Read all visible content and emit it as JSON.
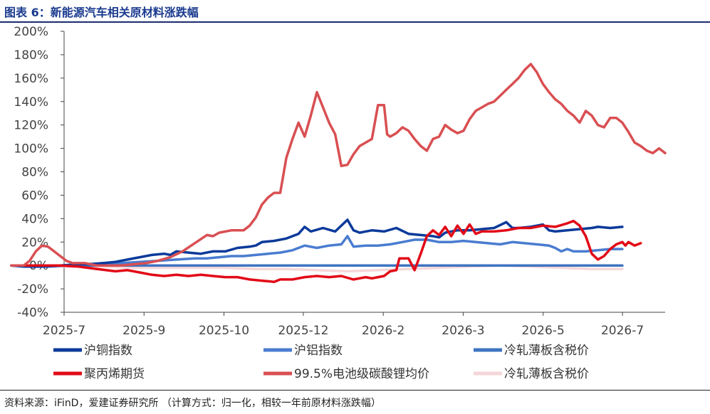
{
  "header": {
    "title": "图表 6：新能源汽车相关原材料涨跌幅"
  },
  "footer": {
    "source": "资料来源：iFinD，爱建证券研究所 （计算方式：归一化，相较一年前原材料涨跌幅）"
  },
  "chart_data": {
    "type": "line",
    "title": "图表 6：新能源汽车相关原材料涨跌幅",
    "xlabel": "",
    "ylabel": "",
    "ylim": [
      -0.4,
      2.0
    ],
    "yticks": [
      -0.4,
      -0.2,
      0,
      0.2,
      0.4,
      0.6,
      0.8,
      1.0,
      1.2,
      1.4,
      1.6,
      1.8,
      2.0
    ],
    "ytick_labels": [
      "-40%",
      "-20%",
      "0%",
      "20%",
      "40%",
      "60%",
      "80%",
      "100%",
      "120%",
      "140%",
      "160%",
      "180%",
      "200%"
    ],
    "xlim": [
      0,
      100
    ],
    "xtick_positions": [
      0,
      13.3,
      26.6,
      39.8,
      53.1,
      66.4,
      79.7,
      92.9
    ],
    "xtick_labels": [
      "2025-7",
      "2025-9",
      "2025-10",
      "2025-12",
      "2026-2",
      "2026-3",
      "2026-5",
      "2026-7"
    ],
    "grid": false,
    "legend_position": "bottom",
    "series": [
      {
        "name": "沪铜指数",
        "color": "#0b3a9a",
        "points": [
          [
            0,
            0
          ],
          [
            2,
            -0.01
          ],
          [
            5,
            -0.01
          ],
          [
            8,
            0
          ],
          [
            11,
            0.01
          ],
          [
            13,
            0.01
          ],
          [
            15,
            0.02
          ],
          [
            17,
            0.03
          ],
          [
            19,
            0.05
          ],
          [
            21,
            0.07
          ],
          [
            23,
            0.09
          ],
          [
            25,
            0.1
          ],
          [
            26,
            0.09
          ],
          [
            27,
            0.12
          ],
          [
            29,
            0.11
          ],
          [
            31,
            0.1
          ],
          [
            33,
            0.12
          ],
          [
            35,
            0.12
          ],
          [
            37,
            0.15
          ],
          [
            39,
            0.16
          ],
          [
            40,
            0.17
          ],
          [
            41,
            0.2
          ],
          [
            43,
            0.21
          ],
          [
            45,
            0.23
          ],
          [
            47,
            0.27
          ],
          [
            48,
            0.33
          ],
          [
            49,
            0.29
          ],
          [
            51,
            0.32
          ],
          [
            53,
            0.29
          ],
          [
            55,
            0.39
          ],
          [
            56,
            0.3
          ],
          [
            57,
            0.28
          ],
          [
            59,
            0.3
          ],
          [
            61,
            0.29
          ],
          [
            63,
            0.32
          ],
          [
            65,
            0.27
          ],
          [
            67,
            0.26
          ],
          [
            69,
            0.25
          ],
          [
            70,
            0.24
          ],
          [
            71,
            0.28
          ],
          [
            73,
            0.3
          ],
          [
            75,
            0.3
          ],
          [
            77,
            0.31
          ],
          [
            79,
            0.32
          ],
          [
            81,
            0.37
          ],
          [
            82,
            0.32
          ],
          [
            83,
            0.32
          ],
          [
            85,
            0.33
          ],
          [
            87,
            0.35
          ],
          [
            88,
            0.3
          ],
          [
            89,
            0.29
          ],
          [
            91,
            0.3
          ],
          [
            93,
            0.31
          ],
          [
            95,
            0.32
          ],
          [
            96,
            0.33
          ],
          [
            98,
            0.32
          ],
          [
            100,
            0.33
          ]
        ]
      },
      {
        "name": "沪铝指数",
        "color": "#4a7cd0",
        "points": [
          [
            0,
            0
          ],
          [
            3,
            -0.01
          ],
          [
            6,
            -0.01
          ],
          [
            9,
            0
          ],
          [
            12,
            0.01
          ],
          [
            15,
            0.02
          ],
          [
            18,
            0.02
          ],
          [
            21,
            0.03
          ],
          [
            24,
            0.04
          ],
          [
            27,
            0.05
          ],
          [
            30,
            0.06
          ],
          [
            32,
            0.06
          ],
          [
            34,
            0.07
          ],
          [
            36,
            0.08
          ],
          [
            38,
            0.08
          ],
          [
            40,
            0.09
          ],
          [
            42,
            0.1
          ],
          [
            44,
            0.11
          ],
          [
            46,
            0.13
          ],
          [
            48,
            0.17
          ],
          [
            50,
            0.15
          ],
          [
            52,
            0.17
          ],
          [
            54,
            0.18
          ],
          [
            55,
            0.25
          ],
          [
            56,
            0.16
          ],
          [
            58,
            0.17
          ],
          [
            60,
            0.17
          ],
          [
            62,
            0.18
          ],
          [
            64,
            0.2
          ],
          [
            66,
            0.22
          ],
          [
            68,
            0.22
          ],
          [
            70,
            0.2
          ],
          [
            72,
            0.2
          ],
          [
            74,
            0.21
          ],
          [
            76,
            0.2
          ],
          [
            78,
            0.19
          ],
          [
            80,
            0.18
          ],
          [
            82,
            0.2
          ],
          [
            84,
            0.19
          ],
          [
            86,
            0.18
          ],
          [
            88,
            0.17
          ],
          [
            89,
            0.15
          ],
          [
            90,
            0.12
          ],
          [
            91,
            0.14
          ],
          [
            92,
            0.12
          ],
          [
            94,
            0.12
          ],
          [
            96,
            0.13
          ],
          [
            98,
            0.14
          ],
          [
            100,
            0.14
          ]
        ]
      },
      {
        "name": "冷轧薄板含税价",
        "color": "#3f74c2",
        "points": [
          [
            0,
            0
          ],
          [
            100,
            0
          ]
        ]
      },
      {
        "name": "聚丙烯期货",
        "color": "#e20a17",
        "points": [
          [
            0,
            0
          ],
          [
            4,
            0
          ],
          [
            8,
            0
          ],
          [
            11,
            -0.01
          ],
          [
            14,
            -0.03
          ],
          [
            17,
            -0.05
          ],
          [
            19,
            -0.04
          ],
          [
            21,
            -0.06
          ],
          [
            23,
            -0.08
          ],
          [
            25,
            -0.09
          ],
          [
            27,
            -0.08
          ],
          [
            29,
            -0.09
          ],
          [
            31,
            -0.08
          ],
          [
            33,
            -0.09
          ],
          [
            35,
            -0.1
          ],
          [
            37,
            -0.1
          ],
          [
            39,
            -0.12
          ],
          [
            41,
            -0.13
          ],
          [
            43,
            -0.14
          ],
          [
            44,
            -0.12
          ],
          [
            46,
            -0.12
          ],
          [
            48,
            -0.1
          ],
          [
            50,
            -0.09
          ],
          [
            52,
            -0.1
          ],
          [
            54,
            -0.09
          ],
          [
            56,
            -0.12
          ],
          [
            58,
            -0.1
          ],
          [
            59,
            -0.11
          ],
          [
            60,
            -0.1
          ],
          [
            61,
            -0.09
          ],
          [
            62,
            -0.05
          ],
          [
            63,
            -0.04
          ],
          [
            63.5,
            0.06
          ],
          [
            64,
            0.06
          ],
          [
            65,
            0.06
          ],
          [
            66,
            -0.04
          ],
          [
            67,
            0.1
          ],
          [
            68,
            0.25
          ],
          [
            69,
            0.3
          ],
          [
            70,
            0.26
          ],
          [
            71,
            0.33
          ],
          [
            72,
            0.25
          ],
          [
            73,
            0.34
          ],
          [
            74,
            0.27
          ],
          [
            75,
            0.35
          ],
          [
            76,
            0.27
          ],
          [
            77,
            0.29
          ],
          [
            79,
            0.29
          ],
          [
            81,
            0.3
          ],
          [
            83,
            0.32
          ],
          [
            85,
            0.32
          ],
          [
            87,
            0.34
          ],
          [
            89,
            0.33
          ],
          [
            91,
            0.36
          ],
          [
            92,
            0.38
          ],
          [
            93,
            0.34
          ],
          [
            94,
            0.25
          ],
          [
            95,
            0.1
          ],
          [
            96,
            0.05
          ],
          [
            97,
            0.08
          ],
          [
            98,
            0.14
          ],
          [
            99,
            0.18
          ],
          [
            100,
            0.2
          ],
          [
            100.5,
            0.17
          ],
          [
            101,
            0.2
          ],
          [
            102,
            0.17
          ],
          [
            103,
            0.19
          ]
        ]
      },
      {
        "name": "99.5%电池级碳酸锂均价",
        "color": "#d94f52",
        "points": [
          [
            0,
            0
          ],
          [
            2,
            0
          ],
          [
            3,
            0.04
          ],
          [
            4,
            0.12
          ],
          [
            5,
            0.17
          ],
          [
            6,
            0.16
          ],
          [
            7,
            0.12
          ],
          [
            8,
            0.08
          ],
          [
            9,
            0.04
          ],
          [
            10,
            0.02
          ],
          [
            12,
            0.02
          ],
          [
            14,
            0
          ],
          [
            16,
            0
          ],
          [
            18,
            0
          ],
          [
            20,
            0.01
          ],
          [
            22,
            0.02
          ],
          [
            24,
            0.04
          ],
          [
            26,
            0.07
          ],
          [
            28,
            0.12
          ],
          [
            30,
            0.19
          ],
          [
            32,
            0.26
          ],
          [
            33,
            0.25
          ],
          [
            34,
            0.28
          ],
          [
            36,
            0.3
          ],
          [
            38,
            0.3
          ],
          [
            39,
            0.34
          ],
          [
            40,
            0.41
          ],
          [
            41,
            0.52
          ],
          [
            42,
            0.58
          ],
          [
            43,
            0.62
          ],
          [
            44,
            0.62
          ],
          [
            45,
            0.92
          ],
          [
            46,
            1.08
          ],
          [
            47,
            1.22
          ],
          [
            48,
            1.1
          ],
          [
            49,
            1.28
          ],
          [
            50,
            1.48
          ],
          [
            51,
            1.35
          ],
          [
            52,
            1.22
          ],
          [
            53,
            1.12
          ],
          [
            54,
            0.85
          ],
          [
            55,
            0.86
          ],
          [
            56,
            0.95
          ],
          [
            57,
            1.02
          ],
          [
            58,
            1.05
          ],
          [
            59,
            1.08
          ],
          [
            60,
            1.37
          ],
          [
            61,
            1.37
          ],
          [
            61.5,
            1.12
          ],
          [
            62,
            1.1
          ],
          [
            63,
            1.13
          ],
          [
            64,
            1.18
          ],
          [
            65,
            1.15
          ],
          [
            66,
            1.08
          ],
          [
            67,
            1.02
          ],
          [
            68,
            0.98
          ],
          [
            69,
            1.08
          ],
          [
            70,
            1.1
          ],
          [
            71,
            1.2
          ],
          [
            72,
            1.16
          ],
          [
            73,
            1.13
          ],
          [
            74,
            1.15
          ],
          [
            75,
            1.25
          ],
          [
            76,
            1.32
          ],
          [
            77,
            1.35
          ],
          [
            78,
            1.38
          ],
          [
            79,
            1.4
          ],
          [
            80,
            1.45
          ],
          [
            81,
            1.5
          ],
          [
            82,
            1.55
          ],
          [
            83,
            1.6
          ],
          [
            84,
            1.67
          ],
          [
            85,
            1.72
          ],
          [
            86,
            1.65
          ],
          [
            87,
            1.55
          ],
          [
            88,
            1.48
          ],
          [
            89,
            1.42
          ],
          [
            90,
            1.38
          ],
          [
            91,
            1.32
          ],
          [
            92,
            1.28
          ],
          [
            93,
            1.22
          ],
          [
            94,
            1.32
          ],
          [
            95,
            1.28
          ],
          [
            96,
            1.2
          ],
          [
            97,
            1.18
          ],
          [
            98,
            1.26
          ],
          [
            99,
            1.26
          ],
          [
            100,
            1.22
          ],
          [
            101,
            1.14
          ],
          [
            102,
            1.05
          ],
          [
            103,
            1.02
          ],
          [
            104,
            0.98
          ],
          [
            105,
            0.96
          ],
          [
            106,
            1.0
          ],
          [
            107,
            0.96
          ]
        ]
      },
      {
        "name": "冷轧薄板含税价",
        "color": "#f5d7d9",
        "points": [
          [
            0,
            0
          ],
          [
            5,
            -0.01
          ],
          [
            10,
            -0.01
          ],
          [
            15,
            -0.01
          ],
          [
            20,
            -0.02
          ],
          [
            25,
            -0.02
          ],
          [
            30,
            -0.02
          ],
          [
            35,
            -0.02
          ],
          [
            40,
            -0.03
          ],
          [
            45,
            -0.03
          ],
          [
            50,
            -0.04
          ],
          [
            55,
            -0.05
          ],
          [
            60,
            -0.04
          ],
          [
            65,
            -0.03
          ],
          [
            70,
            -0.02
          ],
          [
            75,
            -0.01
          ],
          [
            80,
            0.0
          ],
          [
            85,
            -0.01
          ],
          [
            90,
            -0.02
          ],
          [
            95,
            -0.03
          ],
          [
            100,
            -0.03
          ]
        ]
      }
    ]
  }
}
